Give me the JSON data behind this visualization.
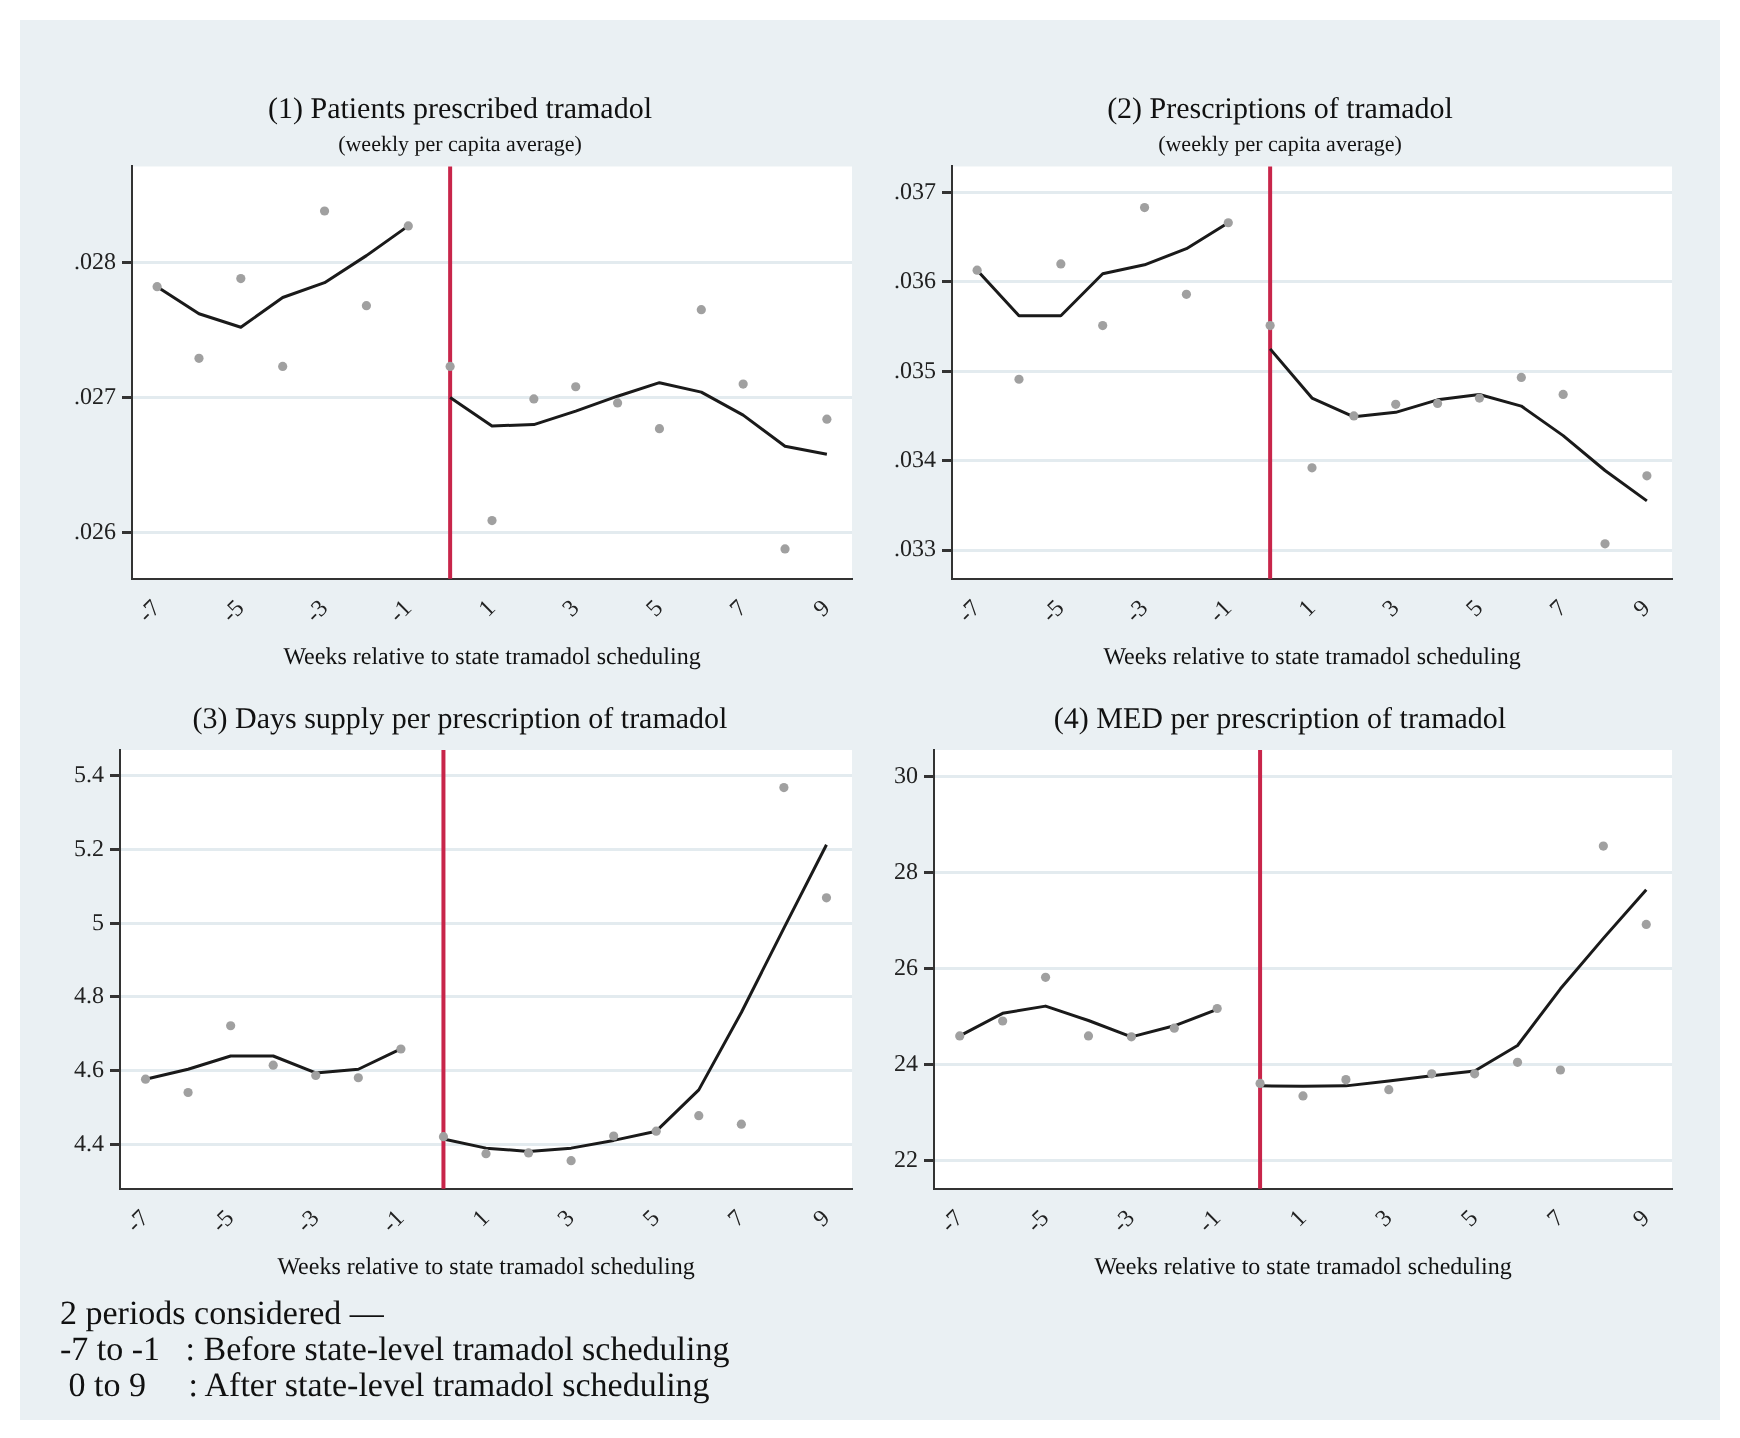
{
  "chart_data": [
    {
      "type": "scatter",
      "title": "(1) Patients prescribed tramadol",
      "subtitle": "(weekly per capita average)",
      "xlabel": "Weeks relative to state tramadol scheduling",
      "x": [
        -7,
        -6,
        -5,
        -4,
        -3,
        -2,
        -1,
        0,
        1,
        2,
        3,
        4,
        5,
        6,
        7,
        8,
        9
      ],
      "series": [
        {
          "color": "#a0a0a0",
          "marker": "circle",
          "values": [
            0.02782,
            0.02729,
            0.02788,
            0.02723,
            0.02838,
            0.02768,
            0.02827,
            0.02723,
            0.02609,
            0.02699,
            0.02708,
            0.02696,
            0.02677,
            0.02765,
            0.0271,
            0.02588,
            0.02684
          ]
        },
        {
          "type": "line",
          "marker": "none",
          "color": "#1a1a1a",
          "x": [
            -7,
            -6,
            -5,
            -4,
            -3,
            -2,
            -1
          ],
          "values": [
            0.02782,
            0.02762,
            0.02752,
            0.02774,
            0.02785,
            0.02805,
            0.02827
          ]
        },
        {
          "type": "line",
          "marker": "none",
          "color": "#1a1a1a",
          "x": [
            0,
            1,
            2,
            3,
            4,
            5,
            6,
            7,
            8,
            9
          ],
          "values": [
            0.027,
            0.02679,
            0.0268,
            0.0269,
            0.02701,
            0.02711,
            0.02704,
            0.02687,
            0.02664,
            0.02658
          ]
        }
      ],
      "xlim": [
        -7.6,
        9.6
      ],
      "xticks": [
        -7,
        -5,
        -3,
        -1,
        1,
        3,
        5,
        7,
        9
      ],
      "ylim": [
        0.02566,
        0.02871
      ],
      "yticks": [
        {
          "value": 0.026,
          "label": ".026"
        },
        {
          "value": 0.027,
          "label": ".027"
        },
        {
          "value": 0.028,
          "label": ".028"
        }
      ],
      "ref_lines": [
        {
          "axis": "x",
          "value": 0,
          "color": "#c8254a"
        }
      ],
      "grid": "y"
    },
    {
      "type": "scatter",
      "title": "(2) Prescriptions of tramadol",
      "subtitle": "(weekly per capita average)",
      "xlabel": "Weeks relative to state tramadol scheduling",
      "x": [
        -7,
        -6,
        -5,
        -4,
        -3,
        -2,
        -1,
        0,
        1,
        2,
        3,
        4,
        5,
        6,
        7,
        8,
        9
      ],
      "series": [
        {
          "color": "#a0a0a0",
          "marker": "circle",
          "values": [
            0.03613,
            0.03491,
            0.0362,
            0.03551,
            0.03683,
            0.03586,
            0.03666,
            0.03551,
            0.03392,
            0.0345,
            0.03463,
            0.03464,
            0.0347,
            0.03493,
            0.03474,
            0.03307,
            0.03383
          ]
        },
        {
          "type": "line",
          "marker": "none",
          "color": "#1a1a1a",
          "x": [
            -7,
            -6,
            -5,
            -4,
            -3,
            -2,
            -1
          ],
          "values": [
            0.03613,
            0.03562,
            0.03562,
            0.03609,
            0.03619,
            0.03637,
            0.03666
          ]
        },
        {
          "type": "line",
          "marker": "none",
          "color": "#1a1a1a",
          "x": [
            0,
            1,
            2,
            3,
            4,
            5,
            6,
            7,
            8,
            9
          ],
          "values": [
            0.03525,
            0.0347,
            0.03449,
            0.03454,
            0.03468,
            0.03474,
            0.03461,
            0.03428,
            0.03389,
            0.03355
          ]
        }
      ],
      "xlim": [
        -7.6,
        9.6
      ],
      "xticks": [
        -7,
        -5,
        -3,
        -1,
        1,
        3,
        5,
        7,
        9
      ],
      "ylim": [
        0.03268,
        0.03729
      ],
      "yticks": [
        {
          "value": 0.033,
          "label": ".033"
        },
        {
          "value": 0.034,
          "label": ".034"
        },
        {
          "value": 0.035,
          "label": ".035"
        },
        {
          "value": 0.036,
          "label": ".036"
        },
        {
          "value": 0.037,
          "label": ".037"
        }
      ],
      "ref_lines": [
        {
          "axis": "x",
          "value": 0,
          "color": "#c8254a"
        }
      ],
      "grid": "y"
    },
    {
      "type": "scatter",
      "title": "(3) Days supply per prescription of tramadol",
      "xlabel": "Weeks relative to state tramadol scheduling",
      "x": [
        -7,
        -6,
        -5,
        -4,
        -3,
        -2,
        -1,
        0,
        1,
        2,
        3,
        4,
        5,
        6,
        7,
        8,
        9
      ],
      "series": [
        {
          "color": "#a0a0a0",
          "marker": "circle",
          "values": [
            4.577,
            4.541,
            4.722,
            4.615,
            4.587,
            4.581,
            4.659,
            4.421,
            4.375,
            4.377,
            4.356,
            4.423,
            4.436,
            4.478,
            4.455,
            5.368,
            5.069
          ]
        },
        {
          "type": "line",
          "marker": "none",
          "color": "#1a1a1a",
          "x": [
            -7,
            -6,
            -5,
            -4,
            -3,
            -2,
            -1
          ],
          "values": [
            4.577,
            4.604,
            4.64,
            4.64,
            4.594,
            4.604,
            4.659
          ]
        },
        {
          "type": "line",
          "marker": "none",
          "color": "#1a1a1a",
          "x": [
            0,
            1,
            2,
            3,
            4,
            5,
            6,
            7,
            8,
            9
          ],
          "values": [
            4.415,
            4.39,
            4.381,
            4.39,
            4.411,
            4.436,
            4.548,
            4.758,
            4.987,
            5.213
          ]
        }
      ],
      "xlim": [
        -7.6,
        9.6
      ],
      "xticks": [
        -7,
        -5,
        -3,
        -1,
        1,
        3,
        5,
        7,
        9
      ],
      "ylim": [
        4.28,
        5.47
      ],
      "yticks": [
        4.4,
        4.6,
        4.8,
        5,
        5.2,
        5.4
      ],
      "ref_lines": [
        {
          "axis": "x",
          "value": 0,
          "color": "#c8254a"
        }
      ],
      "grid": "y",
      "annotations": [
        "2 periods considered —",
        "-7 to -1   : Before state-level tramadol scheduling",
        " 0 to 9     : After state-level tramadol scheduling"
      ]
    },
    {
      "type": "scatter",
      "title": "(4) MED per prescription of tramadol",
      "xlabel": "Weeks relative to state tramadol scheduling",
      "x": [
        -7,
        -6,
        -5,
        -4,
        -3,
        -2,
        -1,
        0,
        1,
        2,
        3,
        4,
        5,
        6,
        7,
        8,
        9
      ],
      "series": [
        {
          "color": "#a0a0a0",
          "marker": "circle",
          "values": [
            24.6,
            24.91,
            25.82,
            24.6,
            24.58,
            24.76,
            25.17,
            23.61,
            23.35,
            23.69,
            23.48,
            23.81,
            23.81,
            24.05,
            23.89,
            28.55,
            26.92
          ]
        },
        {
          "type": "line",
          "marker": "none",
          "color": "#1a1a1a",
          "x": [
            -7,
            -6,
            -5,
            -4,
            -3,
            -2,
            -1
          ],
          "values": [
            24.6,
            25.07,
            25.22,
            24.92,
            24.58,
            24.81,
            25.15
          ]
        },
        {
          "type": "line",
          "marker": "none",
          "color": "#1a1a1a",
          "x": [
            0,
            1,
            2,
            3,
            4,
            5,
            6,
            7,
            8,
            9
          ],
          "values": [
            23.56,
            23.55,
            23.56,
            23.66,
            23.77,
            23.87,
            24.4,
            25.58,
            26.63,
            27.64
          ]
        }
      ],
      "xlim": [
        -7.6,
        9.6
      ],
      "xticks": [
        -7,
        -5,
        -3,
        -1,
        1,
        3,
        5,
        7,
        9
      ],
      "ylim": [
        21.42,
        30.55
      ],
      "yticks": [
        22,
        24,
        26,
        28,
        30
      ],
      "ref_lines": [
        {
          "axis": "x",
          "value": 0,
          "color": "#c8254a"
        }
      ],
      "grid": "y"
    }
  ]
}
